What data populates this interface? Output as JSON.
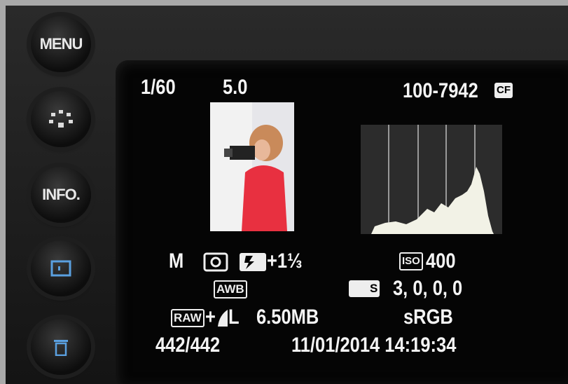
{
  "buttons": {
    "menu": "MENU",
    "info": "INFO."
  },
  "screen": {
    "shutter": "1/60",
    "aperture": "5.0",
    "file_number": "100-7942",
    "card": "CF",
    "mode": "M",
    "flash_comp": "+1⅓",
    "iso_label": "ISO",
    "iso": "400",
    "white_balance": "AWB",
    "picture_style_label": "S",
    "picture_style": "3, 0, 0, 0",
    "quality_raw": "RAW",
    "quality_plus": "+",
    "quality_jpeg": "L",
    "file_size": "6.50MB",
    "color_space": "sRGB",
    "image_count": "442/442",
    "datetime": "11/01/2014 14:19:34"
  }
}
